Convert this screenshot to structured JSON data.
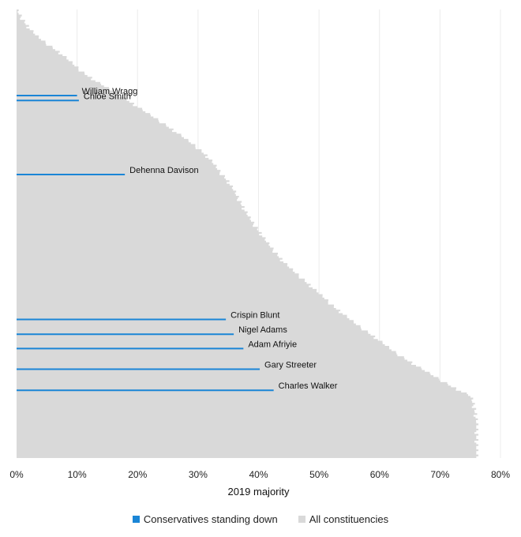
{
  "chart_data": {
    "type": "area",
    "xlabel": "2019 majority",
    "xlim": [
      0,
      80
    ],
    "x_ticks": [
      "0%",
      "10%",
      "20%",
      "30%",
      "40%",
      "50%",
      "60%",
      "70%",
      "80%"
    ],
    "grid": true,
    "legend_position": "bottom",
    "series": [
      {
        "name": "All constituencies",
        "color": "#d9d9d9",
        "kind": "sorted-majority-profile",
        "rank": [
          0,
          2,
          4,
          6,
          8,
          10,
          12,
          14,
          16,
          18,
          20,
          22,
          24,
          26,
          28,
          30,
          32,
          34,
          36,
          38,
          40,
          42,
          44,
          46,
          48,
          50,
          52,
          54,
          56,
          58,
          60,
          62,
          64,
          66,
          68,
          70,
          72,
          74,
          76,
          78,
          80,
          82,
          84,
          86,
          88,
          90,
          92,
          94,
          96,
          98,
          100
        ],
        "majority_pct": [
          0,
          0.9,
          2.0,
          3.5,
          5.5,
          7.6,
          9.3,
          11.0,
          13.3,
          15.8,
          18.2,
          20.5,
          22.8,
          25.0,
          27.2,
          29.2,
          31.0,
          32.4,
          33.5,
          34.8,
          35.8,
          36.6,
          37.4,
          38.3,
          39.3,
          40.4,
          41.5,
          42.7,
          44.0,
          45.6,
          47.3,
          49.0,
          50.7,
          52.3,
          54.2,
          56.1,
          58.2,
          60.3,
          62.2,
          64.5,
          67.0,
          69.5,
          72.0,
          75.0,
          75.5,
          75.8,
          76,
          76,
          76,
          76,
          76
        ]
      },
      {
        "name": "Conservatives standing down",
        "color": "#1a85d6",
        "points": [
          {
            "label": "William Wragg",
            "majority": 10.0,
            "rank": 19.2
          },
          {
            "label": "Chloe Smith",
            "majority": 10.3,
            "rank": 20.3
          },
          {
            "label": "Dehenna Davison",
            "majority": 17.9,
            "rank": 36.8
          },
          {
            "label": "Crispin Blunt",
            "majority": 34.6,
            "rank": 69.1
          },
          {
            "label": "Nigel Adams",
            "majority": 35.9,
            "rank": 72.4
          },
          {
            "label": "Adam Afriyie",
            "majority": 37.5,
            "rank": 75.6
          },
          {
            "label": "Gary Streeter",
            "majority": 40.2,
            "rank": 80.2
          },
          {
            "label": "Charles Walker",
            "majority": 42.5,
            "rank": 84.9
          }
        ]
      }
    ]
  },
  "legend": {
    "items": [
      {
        "label": "Conservatives standing down",
        "color": "#1a85d6"
      },
      {
        "label": "All constituencies",
        "color": "#d9d9d9"
      }
    ]
  }
}
